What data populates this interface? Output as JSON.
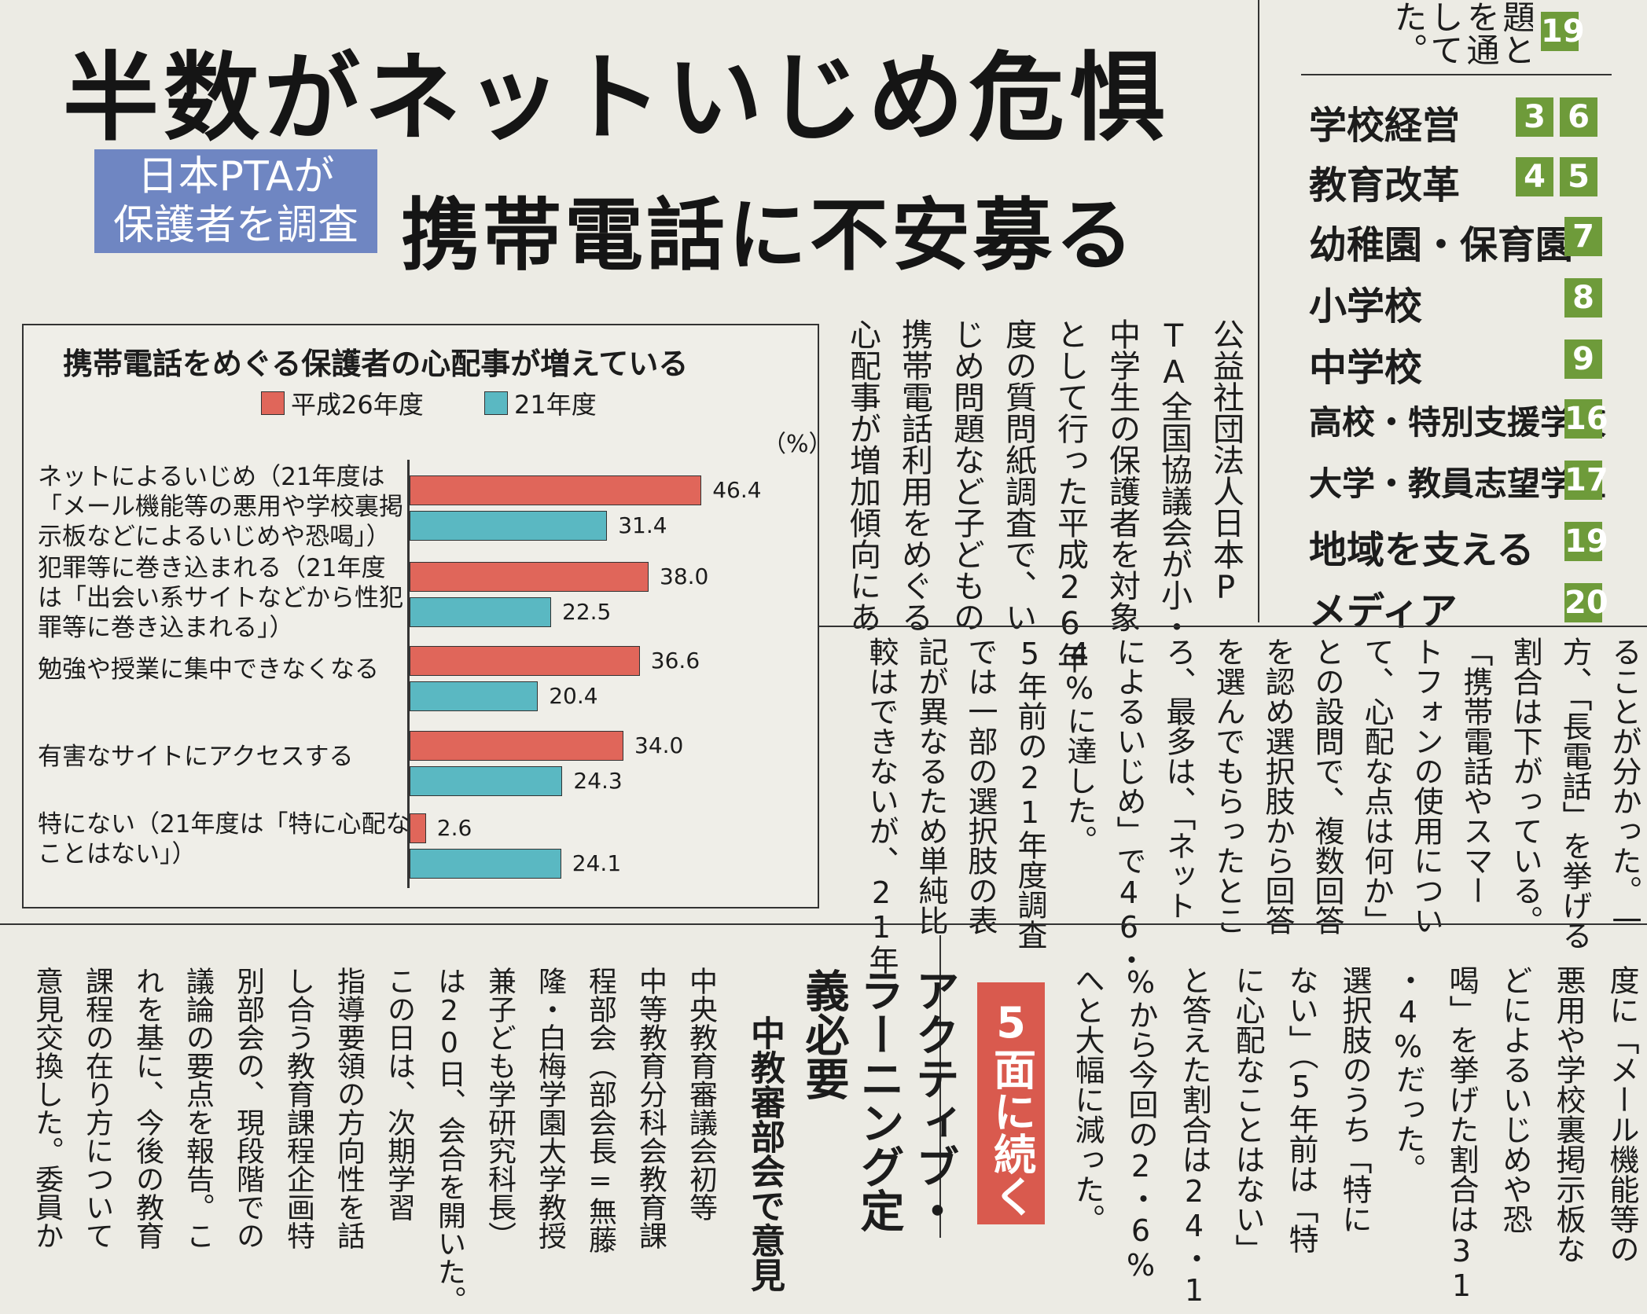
{
  "headline": "半数がネットいじめ危惧",
  "badge": {
    "line1": "日本PTAが",
    "line2": "保護者を調査"
  },
  "subheadline": "携帯電話に不安募る",
  "index": {
    "top_fragment": [
      "題と",
      "を通",
      "して",
      "た。"
    ],
    "top_page": "19",
    "items": [
      {
        "label": "学校経営",
        "pages": [
          "3",
          "6"
        ]
      },
      {
        "label": "教育改革",
        "pages": [
          "4",
          "5"
        ]
      },
      {
        "label": "幼稚園・保育園",
        "pages": [
          "7"
        ]
      },
      {
        "label": "小学校",
        "pages": [
          "8"
        ]
      },
      {
        "label": "中学校",
        "pages": [
          "9"
        ]
      },
      {
        "label": "高校・特別支援学校",
        "pages": [
          "16"
        ]
      },
      {
        "label": "大学・教員志望学生",
        "pages": [
          "17"
        ]
      },
      {
        "label": "地域を支える",
        "pages": [
          "19"
        ]
      },
      {
        "label": "メディア",
        "pages": [
          "20"
        ]
      }
    ],
    "page_color": "#6e9b3a"
  },
  "chart_data": {
    "type": "bar",
    "orientation": "horizontal",
    "title": "携帯電話をめぐる保護者の心配事が増えている",
    "unit": "（%）",
    "categories": [
      "ネットによるいじめ（21年度は「メール機能等の悪用や学校裏掲示板などによるいじめや恐喝」）",
      "犯罪等に巻き込まれる（21年度は「出会い系サイトなどから性犯罪等に巻き込まれる」）",
      "勉強や授業に集中できなくなる",
      "有害なサイトにアクセスする",
      "特にない（21年度は「特に心配なことはない」）"
    ],
    "category_lines": [
      [
        "ネットによるいじめ（21年度は",
        "「メール機能等の悪用や学校裏掲",
        "示板などによるいじめや恐喝」）"
      ],
      [
        "犯罪等に巻き込まれる（21年度",
        "は「出会い系サイトなどから性犯",
        "罪等に巻き込まれる」）"
      ],
      [
        "勉強や授業に集中できなくなる"
      ],
      [
        "有害なサイトにアクセスする"
      ],
      [
        "特にない（21年度は「特に心配な",
        "ことはない」）"
      ]
    ],
    "series": [
      {
        "name": "平成26年度",
        "color": "#e0665a",
        "values": [
          46.4,
          38.0,
          36.6,
          34.0,
          2.6
        ],
        "labels": [
          "46.4",
          "38.0",
          "36.6",
          "34.0",
          "2.6"
        ]
      },
      {
        "name": "21年度",
        "color": "#5ab8c2",
        "values": [
          31.4,
          22.5,
          20.4,
          24.3,
          24.1
        ],
        "labels": [
          "31.4",
          "22.5",
          "20.4",
          "24.3",
          "24.1"
        ]
      }
    ],
    "xlim": [
      0,
      50
    ]
  },
  "article": {
    "upper_columns": [
      "公益社団法人日本P",
      "TA全国協議会が小・",
      "中学生の保護者を対象",
      "として行った平成26年",
      "度の質問紙調査で、い",
      "じめ問題など子どもの",
      "携帯電話利用をめぐる",
      "心配事が増加傾向にあ"
    ],
    "mid_columns": [
      "ることが分かった。一",
      "方、「長電話」を挙げる",
      "割合は下がっている。",
      "「携帯電話やスマー",
      "トフォンの使用につい",
      "て、心配な点は何か」",
      "との設問で、複数回答",
      "を認め選択肢から回答",
      "を選んでもらったとこ",
      "ろ、最多は、「ネット",
      "によるいじめ」で46・",
      "4%に達した。",
      "5年前の21年度調査",
      "では一部の選択肢の表",
      "記が異なるため単純比",
      "較はできないが、21年"
    ],
    "lower_right_columns": [
      "度に「メール機能等の",
      "悪用や学校裏掲示板な",
      "どによるいじめや恐",
      "喝」を挙げた割合は31",
      "・4%だった。",
      "選択肢のうち「特に",
      "ない」（5年前は「特",
      "に心配なことはない」",
      "と答えた割合は24・1",
      "%から今回の2・6%",
      "へと大幅に減った。"
    ],
    "continued": "5面に続く",
    "continued_color": "#d95a4e"
  },
  "second_story": {
    "title": "アクティブ・ラーニング定義必要",
    "subtitle": "中教審部会で意見",
    "columns": [
      "中央教育審議会初等",
      "中等教育分科会教育課",
      "程部会（部会長=無藤",
      "隆・白梅学園大学教授",
      "兼子ども学研究科長）",
      "は20日、会合を開いた。",
      "この日は、次期学習",
      "指導要領の方向性を話",
      "し合う教育課程企画特",
      "別部会の、現段階での",
      "議論の要点を報告。こ",
      "れを基に、今後の教育",
      "課程の在り方について",
      "意見交換した。委員か"
    ]
  }
}
